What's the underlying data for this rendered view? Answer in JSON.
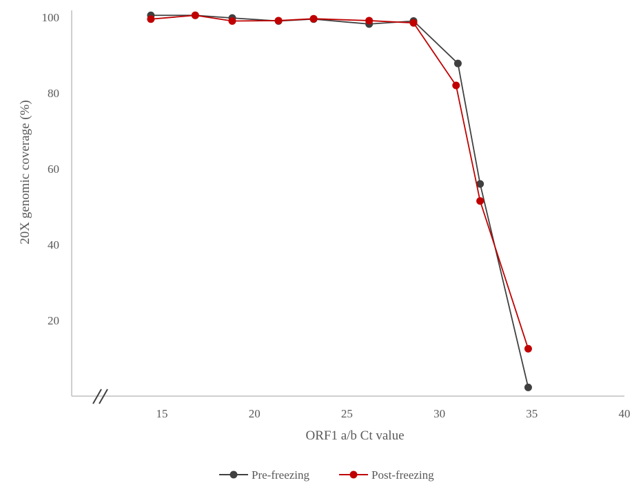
{
  "chart_data": {
    "type": "line",
    "title": "",
    "xlabel": "ORF1 a/b Ct value",
    "ylabel": "20X genomic coverage (%)",
    "xlim": [
      10,
      40
    ],
    "ylim": [
      0,
      100
    ],
    "x_ticks": [
      15,
      20,
      25,
      30,
      35,
      40
    ],
    "y_ticks": [
      20,
      40,
      60,
      80,
      100
    ],
    "axis_break": true,
    "grid": false,
    "legend_position": "bottom",
    "series": [
      {
        "name": "Pre-freezing",
        "color": "#404040",
        "x": [
          14.4,
          16.8,
          18.8,
          21.3,
          23.2,
          26.2,
          28.6,
          31.0,
          32.2,
          34.8
        ],
        "y": [
          100.5,
          100.5,
          99.8,
          99.0,
          99.5,
          98.2,
          99.0,
          87.8,
          56.0,
          2.3
        ]
      },
      {
        "name": "Post-freezing",
        "color": "#c00000",
        "x": [
          14.4,
          16.8,
          18.8,
          21.3,
          23.2,
          26.2,
          28.6,
          30.9,
          32.2,
          34.8
        ],
        "y": [
          99.5,
          100.5,
          99.0,
          99.1,
          99.6,
          99.1,
          98.5,
          82.0,
          51.5,
          12.5
        ]
      }
    ]
  }
}
